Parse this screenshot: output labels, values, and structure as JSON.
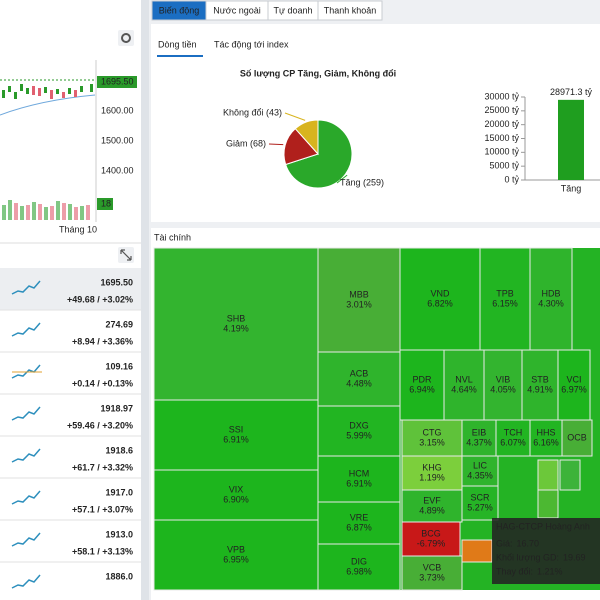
{
  "left_panel": {
    "chart": {
      "price_labels": [
        "1695.50",
        "1600.00",
        "1500.00",
        "1400.00"
      ],
      "volume_label": "18",
      "month_label": "Tháng 10"
    },
    "indices": [
      {
        "price": "1695.50",
        "change": "+49.68 / +3.02%"
      },
      {
        "price": "274.69",
        "change": "+8.94 / +3.36%"
      },
      {
        "price": "109.16",
        "change": "+0.14 / +0.13%"
      },
      {
        "price": "1918.97",
        "change": "+59.46 / +3.20%"
      },
      {
        "price": "1918.6",
        "change": "+61.7 / +3.32%"
      },
      {
        "price": "1917.0",
        "change": "+57.1 / +3.07%"
      },
      {
        "price": "1913.0",
        "change": "+58.1 / +3.13%"
      },
      {
        "price": "1886.0"
      }
    ]
  },
  "tabs": [
    "Biến động",
    "Nước ngoài",
    "Tự doanh",
    "Thanh khoản"
  ],
  "sub_tabs": [
    "Dòng tiền",
    "Tác động tới index"
  ],
  "pie_chart": {
    "type": "pie",
    "title": "Số lượng CP Tăng, Giảm, Không đổi",
    "slices": [
      {
        "label": "Tăng (259)",
        "value": 259,
        "color": "#2aa82a"
      },
      {
        "label": "Giảm (68)",
        "value": 68,
        "color": "#b0201c"
      },
      {
        "label": "Không đổi (43)",
        "value": 43,
        "color": "#d8b41e"
      }
    ]
  },
  "bar_chart": {
    "type": "bar",
    "categories": [
      "Tăng"
    ],
    "values": [
      28971.3
    ],
    "value_labels": [
      "28971.3 tỷ"
    ],
    "color": "#1f9e1f",
    "ylim": [
      0,
      30000
    ],
    "yticks": [
      {
        "value": 30000,
        "label": "30000 tỷ"
      },
      {
        "value": 25000,
        "label": "25000 tỷ"
      },
      {
        "value": 20000,
        "label": "20000 tỷ"
      },
      {
        "value": 15000,
        "label": "15000 tỷ"
      },
      {
        "value": 10000,
        "label": "10000 tỷ"
      },
      {
        "value": 5000,
        "label": "5000 tỷ"
      },
      {
        "value": 0,
        "label": "0 tỷ"
      }
    ]
  },
  "treemap": {
    "title": "Tài chính",
    "tiles": [
      {
        "ticker": "SHB",
        "change": "4.19%",
        "color": "#33b42f"
      },
      {
        "ticker": "SSI",
        "change": "6.91%",
        "color": "#1db51d"
      },
      {
        "ticker": "VIX",
        "change": "6.90%",
        "color": "#1db51d"
      },
      {
        "ticker": "VPB",
        "change": "6.95%",
        "color": "#1db51d"
      },
      {
        "ticker": "MBB",
        "change": "3.01%",
        "color": "#48ae36"
      },
      {
        "ticker": "ACB",
        "change": "4.48%",
        "color": "#2fb42c"
      },
      {
        "ticker": "DXG",
        "change": "5.99%",
        "color": "#22b522"
      },
      {
        "ticker": "HCM",
        "change": "6.91%",
        "color": "#1db51d"
      },
      {
        "ticker": "VRE",
        "change": "6.87%",
        "color": "#1db51d"
      },
      {
        "ticker": "DIG",
        "change": "6.98%",
        "color": "#1db51d"
      },
      {
        "ticker": "VND",
        "change": "6.82%",
        "color": "#1db51d"
      },
      {
        "ticker": "TPB",
        "change": "6.15%",
        "color": "#22b522"
      },
      {
        "ticker": "HDB",
        "change": "4.30%",
        "color": "#2fb42c"
      },
      {
        "ticker": "PDR",
        "change": "6.94%",
        "color": "#1db51d"
      },
      {
        "ticker": "NVL",
        "change": "4.64%",
        "color": "#2fb42c"
      },
      {
        "ticker": "VIB",
        "change": "4.05%",
        "color": "#33b42f"
      },
      {
        "ticker": "STB",
        "change": "4.91%",
        "color": "#2fb42c"
      },
      {
        "ticker": "VCI",
        "change": "6.97%",
        "color": "#1db51d"
      },
      {
        "ticker": "CTG",
        "change": "3.15%",
        "color": "#5fc23a"
      },
      {
        "ticker": "EIB",
        "change": "4.37%",
        "color": "#2fb42c"
      },
      {
        "ticker": "TCH",
        "change": "6.07%",
        "color": "#22b522"
      },
      {
        "ticker": "HHS",
        "change": "6.16%",
        "color": "#22b522"
      },
      {
        "ticker": "OCB",
        "color": "#48ae36"
      },
      {
        "ticker": "KHG",
        "change": "1.19%",
        "color": "#7ccf3c"
      },
      {
        "ticker": "LIC",
        "change": "4.35%",
        "color": "#2fb42c"
      },
      {
        "ticker": "EVF",
        "change": "4.89%",
        "color": "#2fb42c"
      },
      {
        "ticker": "SCR",
        "change": "5.27%",
        "color": "#26b426"
      },
      {
        "ticker": "BCG",
        "change": "-6.79%",
        "color": "#c81818"
      },
      {
        "ticker": "VCB",
        "change": "3.73%",
        "color": "#48ae36"
      }
    ],
    "tooltip": {
      "title": "HAG-CTCP Hoàng Anh",
      "rows": [
        {
          "label": "Giá:",
          "value": "16.70"
        },
        {
          "label": "Khối lượng GD:",
          "value": "19.69"
        },
        {
          "label": "Thay đổi:",
          "value": "1.21%"
        }
      ]
    }
  }
}
